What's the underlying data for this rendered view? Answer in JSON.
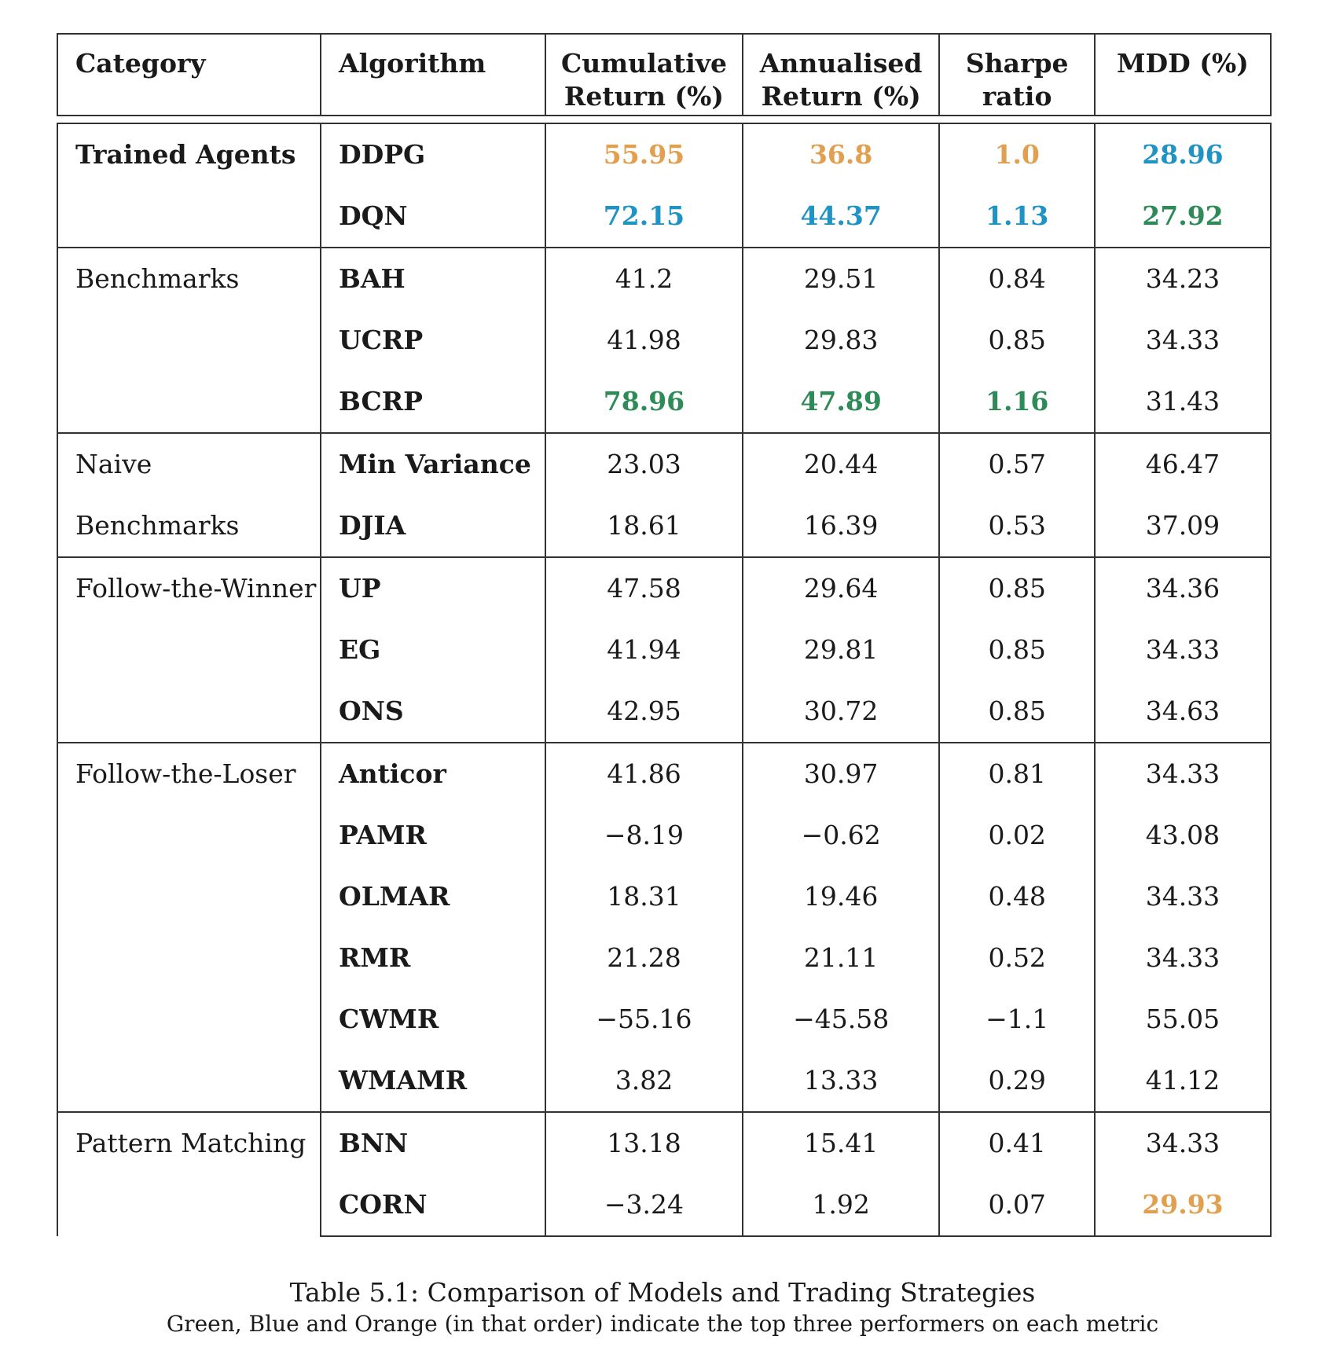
{
  "table": {
    "headers": {
      "category": "Category",
      "algorithm": "Algorithm",
      "cumulative_1": "Cumulative",
      "cumulative_2": "Return (%)",
      "annualised_1": "Annualised",
      "annualised_2": "Return (%)",
      "sharpe_1": "Sharpe",
      "sharpe_2": "ratio",
      "mdd": "MDD (%)"
    },
    "highlight_colors": {
      "green": "#2e8b57",
      "blue": "#1f93c4",
      "orange": "#e0a050"
    },
    "groups": [
      {
        "category": "Trained Agents",
        "category_bold": true,
        "rows": [
          {
            "algorithm": "DDPG",
            "cumulative": "55.95",
            "annualised": "36.8",
            "sharpe": "1.0",
            "mdd": "28.96",
            "colors": {
              "cumulative": "orange",
              "annualised": "orange",
              "sharpe": "orange",
              "mdd": "blue"
            }
          },
          {
            "algorithm": "DQN",
            "cumulative": "72.15",
            "annualised": "44.37",
            "sharpe": "1.13",
            "mdd": "27.92",
            "colors": {
              "cumulative": "blue",
              "annualised": "blue",
              "sharpe": "blue",
              "mdd": "green"
            }
          }
        ]
      },
      {
        "category": "Benchmarks",
        "category_bold": false,
        "rows": [
          {
            "algorithm": "BAH",
            "cumulative": "41.2",
            "annualised": "29.51",
            "sharpe": "0.84",
            "mdd": "34.23",
            "colors": {}
          },
          {
            "algorithm": "UCRP",
            "cumulative": "41.98",
            "annualised": "29.83",
            "sharpe": "0.85",
            "mdd": "34.33",
            "colors": {}
          },
          {
            "algorithm": "BCRP",
            "cumulative": "78.96",
            "annualised": "47.89",
            "sharpe": "1.16",
            "mdd": "31.43",
            "colors": {
              "cumulative": "green",
              "annualised": "green",
              "sharpe": "green"
            }
          }
        ]
      },
      {
        "category": "Naive Benchmarks",
        "category_bold": false,
        "rows": [
          {
            "algorithm": "Min Variance",
            "cumulative": "23.03",
            "annualised": "20.44",
            "sharpe": "0.57",
            "mdd": "46.47",
            "colors": {}
          },
          {
            "algorithm": "DJIA",
            "cumulative": "18.61",
            "annualised": "16.39",
            "sharpe": "0.53",
            "mdd": "37.09",
            "colors": {}
          }
        ]
      },
      {
        "category": "Follow-the-Winner",
        "category_bold": false,
        "rows": [
          {
            "algorithm": "UP",
            "cumulative": "47.58",
            "annualised": "29.64",
            "sharpe": "0.85",
            "mdd": "34.36",
            "colors": {}
          },
          {
            "algorithm": "EG",
            "cumulative": "41.94",
            "annualised": "29.81",
            "sharpe": "0.85",
            "mdd": "34.33",
            "colors": {}
          },
          {
            "algorithm": "ONS",
            "cumulative": "42.95",
            "annualised": "30.72",
            "sharpe": "0.85",
            "mdd": "34.63",
            "colors": {}
          }
        ]
      },
      {
        "category": "Follow-the-Loser",
        "category_bold": false,
        "rows": [
          {
            "algorithm": "Anticor",
            "cumulative": "41.86",
            "annualised": "30.97",
            "sharpe": "0.81",
            "mdd": "34.33",
            "colors": {}
          },
          {
            "algorithm": "PAMR",
            "cumulative": "−8.19",
            "annualised": "−0.62",
            "sharpe": "0.02",
            "mdd": "43.08",
            "colors": {}
          },
          {
            "algorithm": "OLMAR",
            "cumulative": "18.31",
            "annualised": "19.46",
            "sharpe": "0.48",
            "mdd": "34.33",
            "colors": {}
          },
          {
            "algorithm": "RMR",
            "cumulative": "21.28",
            "annualised": "21.11",
            "sharpe": "0.52",
            "mdd": "34.33",
            "colors": {}
          },
          {
            "algorithm": "CWMR",
            "cumulative": "−55.16",
            "annualised": "−45.58",
            "sharpe": "−1.1",
            "mdd": "55.05",
            "colors": {}
          },
          {
            "algorithm": "WMAMR",
            "cumulative": "3.82",
            "annualised": "13.33",
            "sharpe": "0.29",
            "mdd": "41.12",
            "colors": {}
          }
        ]
      },
      {
        "category": "Pattern Matching",
        "category_bold": false,
        "rows": [
          {
            "algorithm": "BNN",
            "cumulative": "13.18",
            "annualised": "15.41",
            "sharpe": "0.41",
            "mdd": "34.33",
            "colors": {}
          },
          {
            "algorithm": "CORN",
            "cumulative": "−3.24",
            "annualised": "1.92",
            "sharpe": "0.07",
            "mdd": "29.93",
            "colors": {
              "mdd": "orange"
            }
          }
        ]
      }
    ]
  },
  "caption": {
    "line1": "Table 5.1: Comparison of Models and Trading Strategies",
    "line2": "Green, Blue and Orange (in that order) indicate the top three performers on each metric"
  }
}
